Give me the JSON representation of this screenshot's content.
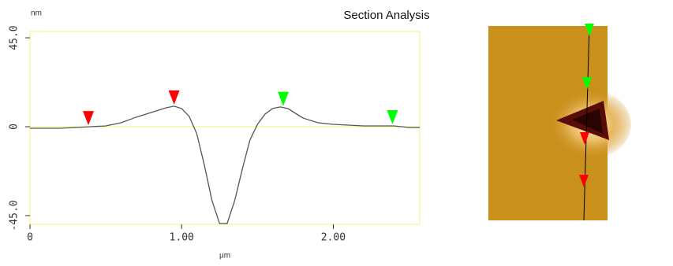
{
  "chart_data": {
    "type": "line",
    "title": "Section Analysis",
    "y_unit": "nm",
    "x_label": "µm",
    "x": [
      0,
      0.2,
      0.4,
      0.5,
      0.6,
      0.7,
      0.8,
      0.9,
      0.95,
      1.0,
      1.05,
      1.1,
      1.15,
      1.2,
      1.25,
      1.3,
      1.35,
      1.4,
      1.45,
      1.5,
      1.55,
      1.6,
      1.65,
      1.7,
      1.8,
      1.9,
      2.0,
      2.2,
      2.4,
      2.5,
      2.57
    ],
    "series": [
      {
        "color": "#555555",
        "values": [
          -0.8,
          -0.8,
          0,
          0.4,
          2,
          4.8,
          7.2,
          9.6,
          10.4,
          9.2,
          5.2,
          -3.6,
          -19.5,
          -37.4,
          -49,
          -49,
          -37.4,
          -21.5,
          -6.8,
          1.2,
          6.4,
          9.2,
          10,
          9.2,
          4.4,
          2,
          1.2,
          0.4,
          0.4,
          -0.4,
          -0.4
        ]
      }
    ],
    "cursors": [
      {
        "x": 0.385,
        "color": "#ff0000"
      },
      {
        "x": 0.95,
        "color": "#ff0000"
      },
      {
        "x": 1.67,
        "color": "#00ff00"
      },
      {
        "x": 2.39,
        "color": "#00ff00"
      }
    ],
    "xlim": [
      0,
      2.57
    ],
    "ylim": [
      -49.4,
      48.2
    ],
    "xticks": [
      0,
      {
        "value": 1,
        "label": "1.00"
      },
      {
        "value": 2,
        "label": "2.00"
      }
    ],
    "yticks": [
      {
        "value": 45,
        "label": "45.0"
      },
      0,
      {
        "value": -45,
        "label": "-45.0"
      }
    ]
  }
}
